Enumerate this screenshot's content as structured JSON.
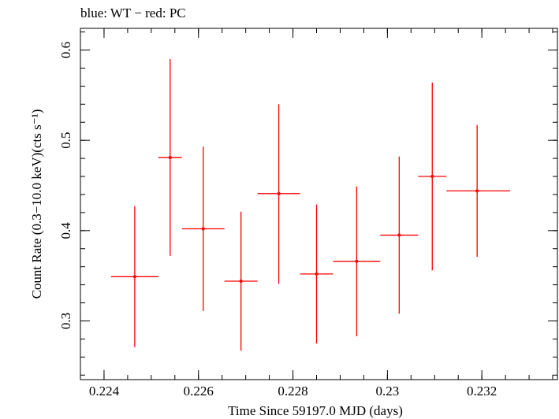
{
  "chart_data": {
    "type": "scatter",
    "title": "blue: WT − red: PC",
    "xlabel": "Time Since 59197.0 MJD (days)",
    "ylabel": "Count Rate (0.3−10.0 keV)(cts s⁻¹)",
    "xlim": [
      0.2235,
      0.2336
    ],
    "ylim": [
      0.235,
      0.624
    ],
    "x_ticks": [
      {
        "value": 0.224,
        "label": "0.224"
      },
      {
        "value": 0.226,
        "label": "0.226"
      },
      {
        "value": 0.228,
        "label": "0.228"
      },
      {
        "value": 0.23,
        "label": "0.23"
      },
      {
        "value": 0.232,
        "label": "0.232"
      }
    ],
    "y_ticks": [
      {
        "value": 0.3,
        "label": "0.3"
      },
      {
        "value": 0.4,
        "label": "0.4"
      },
      {
        "value": 0.5,
        "label": "0.5"
      },
      {
        "value": 0.6,
        "label": "0.6"
      }
    ],
    "grid": false,
    "series": [
      {
        "name": "PC",
        "color": "#ff0000",
        "points": [
          {
            "x": 0.22465,
            "x_lo": 0.22415,
            "x_hi": 0.22515,
            "y": 0.349,
            "y_lo": 0.271,
            "y_hi": 0.427
          },
          {
            "x": 0.2254,
            "x_lo": 0.22515,
            "x_hi": 0.22565,
            "y": 0.481,
            "y_lo": 0.372,
            "y_hi": 0.59
          },
          {
            "x": 0.2261,
            "x_lo": 0.22565,
            "x_hi": 0.22655,
            "y": 0.402,
            "y_lo": 0.311,
            "y_hi": 0.493
          },
          {
            "x": 0.2269,
            "x_lo": 0.22655,
            "x_hi": 0.22725,
            "y": 0.344,
            "y_lo": 0.267,
            "y_hi": 0.421
          },
          {
            "x": 0.2277,
            "x_lo": 0.22725,
            "x_hi": 0.22815,
            "y": 0.441,
            "y_lo": 0.341,
            "y_hi": 0.54
          },
          {
            "x": 0.2285,
            "x_lo": 0.22815,
            "x_hi": 0.22885,
            "y": 0.352,
            "y_lo": 0.275,
            "y_hi": 0.429
          },
          {
            "x": 0.22935,
            "x_lo": 0.22885,
            "x_hi": 0.22985,
            "y": 0.366,
            "y_lo": 0.283,
            "y_hi": 0.449
          },
          {
            "x": 0.23025,
            "x_lo": 0.22985,
            "x_hi": 0.23065,
            "y": 0.395,
            "y_lo": 0.308,
            "y_hi": 0.482
          },
          {
            "x": 0.23095,
            "x_lo": 0.23065,
            "x_hi": 0.23125,
            "y": 0.46,
            "y_lo": 0.356,
            "y_hi": 0.564
          },
          {
            "x": 0.2319,
            "x_lo": 0.23125,
            "x_hi": 0.2326,
            "y": 0.444,
            "y_lo": 0.371,
            "y_hi": 0.517
          }
        ]
      }
    ]
  }
}
